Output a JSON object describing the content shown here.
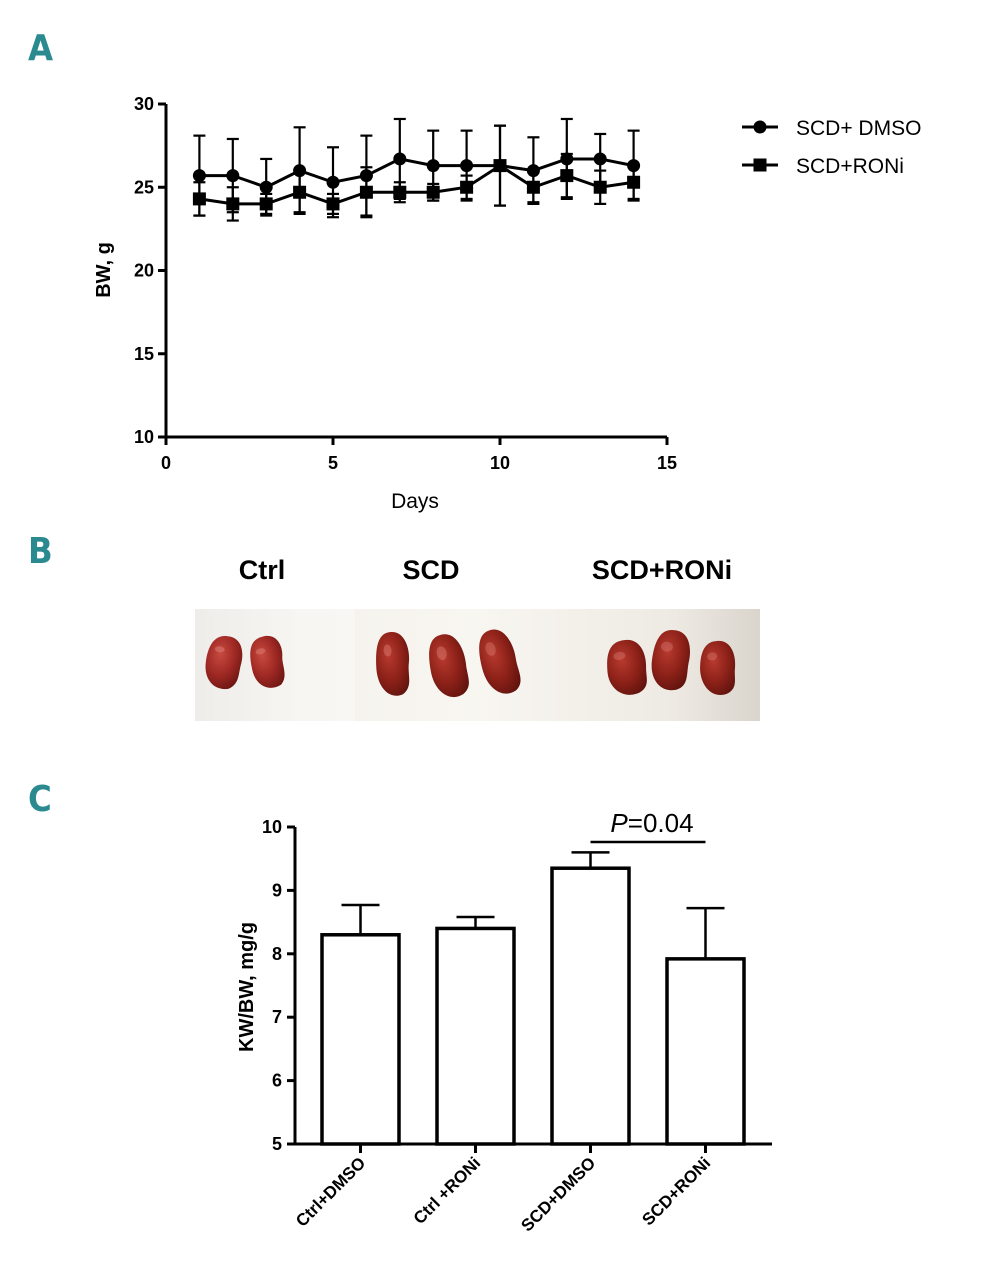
{
  "panels": {
    "a": "A",
    "b": "B",
    "c": "C"
  },
  "colors": {
    "panel_letter": "#2a8a8f",
    "line": "#000000"
  },
  "chart_data": [
    {
      "type": "line",
      "panel": "A",
      "title": "",
      "xlabel": "Days",
      "ylabel": "BW, g",
      "xlim": [
        0,
        15
      ],
      "ylim": [
        10,
        30
      ],
      "xticks": [
        0,
        5,
        10,
        15
      ],
      "yticks": [
        10,
        15,
        20,
        25,
        30
      ],
      "legend_position": "top-right",
      "x": [
        1,
        2,
        3,
        4,
        5,
        6,
        7,
        8,
        9,
        10,
        11,
        12,
        13,
        14
      ],
      "series": [
        {
          "name": "SCD+ DMSO",
          "marker": "circle",
          "values": [
            25.7,
            25.7,
            25.0,
            26.0,
            25.3,
            25.7,
            26.7,
            26.3,
            26.3,
            26.3,
            26.0,
            26.7,
            26.7,
            26.3
          ],
          "error": [
            2.4,
            2.2,
            1.7,
            2.6,
            2.1,
            2.4,
            2.4,
            2.1,
            2.1,
            2.4,
            2.0,
            2.4,
            1.5,
            2.1
          ]
        },
        {
          "name": "SCD+RONi",
          "marker": "square",
          "values": [
            24.3,
            24.0,
            24.0,
            24.7,
            24.0,
            24.7,
            24.7,
            24.7,
            25.0,
            26.3,
            25.0,
            25.7,
            25.0,
            25.3
          ],
          "error": [
            1.0,
            1.0,
            0.6,
            1.2,
            0.6,
            1.5,
            0.6,
            0.5,
            0.7,
            2.4,
            0.9,
            1.3,
            1.0,
            1.0
          ]
        }
      ]
    },
    {
      "type": "bar",
      "panel": "C",
      "title": "",
      "xlabel": "",
      "ylabel": "KW/BW, mg/g",
      "ylim": [
        5,
        10
      ],
      "yticks": [
        5,
        6,
        7,
        8,
        9,
        10
      ],
      "categories": [
        "Ctrl+DMSO",
        "Ctrl +RONi",
        "SCD+DMSO",
        "SCD+RONi"
      ],
      "values": [
        8.3,
        8.4,
        9.35,
        7.92
      ],
      "error": [
        0.47,
        0.18,
        0.25,
        0.8
      ],
      "annotation": {
        "prefix": "P",
        "text": "=0.04",
        "between": [
          "SCD+DMSO",
          "SCD+RONi"
        ]
      }
    }
  ],
  "photo": {
    "labels": [
      "Ctrl",
      "SCD",
      "SCD+RONi"
    ],
    "kidney_counts": [
      2,
      3,
      3
    ]
  }
}
